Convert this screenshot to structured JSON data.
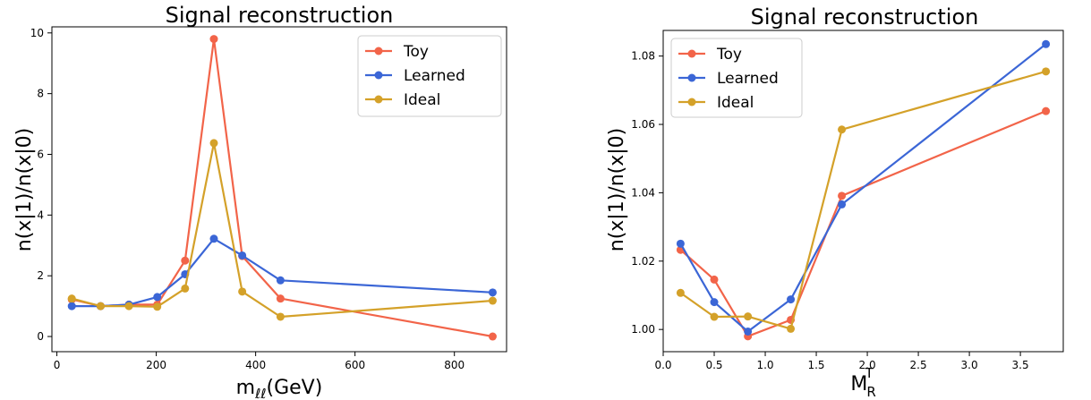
{
  "chart_data": [
    {
      "type": "line",
      "title": "Signal reconstruction",
      "xlabel": "m",
      "xlabel_sub": "ℓℓ",
      "xlabel_suffix": "(GeV)",
      "ylabel": "n(x|1)/n(x|0)",
      "xlim": [
        -10,
        905
      ],
      "ylim": [
        -0.5,
        10.2
      ],
      "xticks": [
        0,
        200,
        400,
        600,
        800
      ],
      "yticks": [
        0,
        2,
        4,
        6,
        8,
        10
      ],
      "legend_position": "top-right",
      "grid": false,
      "series": [
        {
          "name": "Toy",
          "color": "#f26449",
          "x": [
            30,
            88,
            145,
            202,
            258,
            316,
            373,
            450,
            877
          ],
          "y": [
            1.22,
            1.0,
            1.05,
            1.05,
            2.5,
            9.8,
            2.65,
            1.25,
            0.0
          ]
        },
        {
          "name": "Learned",
          "color": "#3b66d6",
          "x": [
            30,
            88,
            145,
            202,
            258,
            316,
            373,
            450,
            877
          ],
          "y": [
            1.0,
            1.0,
            1.05,
            1.3,
            2.05,
            3.22,
            2.67,
            1.85,
            1.45
          ]
        },
        {
          "name": "Ideal",
          "color": "#d4a129",
          "x": [
            30,
            88,
            145,
            202,
            258,
            316,
            373,
            450,
            877
          ],
          "y": [
            1.25,
            1.0,
            1.0,
            0.98,
            1.58,
            6.37,
            1.48,
            0.65,
            1.18
          ]
        }
      ]
    },
    {
      "type": "line",
      "title": "Signal reconstruction",
      "xlabel": "M",
      "xlabel_sub": "R",
      "xlabel_sup": "T",
      "xlabel_suffix": "",
      "ylabel": "n(x|1)/n(x|0)",
      "xlim": [
        0,
        3.92
      ],
      "ylim": [
        0.9935,
        1.0875
      ],
      "xticks": [
        0.0,
        0.5,
        1.0,
        1.5,
        2.0,
        2.5,
        3.0,
        3.5
      ],
      "xtick_labels": [
        "0.0",
        "0.5",
        "1.0",
        "1.5",
        "2.0",
        "2.5",
        "3.0",
        "3.5"
      ],
      "yticks": [
        1.0,
        1.02,
        1.04,
        1.06,
        1.08
      ],
      "ytick_labels": [
        "1.00",
        "1.02",
        "1.04",
        "1.06",
        "1.08"
      ],
      "legend_position": "top-left",
      "grid": false,
      "series": [
        {
          "name": "Toy",
          "color": "#f26449",
          "x": [
            0.17,
            0.5,
            0.83,
            1.25,
            1.75,
            3.75
          ],
          "y": [
            1.0233,
            1.0146,
            0.998,
            1.0028,
            1.0391,
            1.0639
          ]
        },
        {
          "name": "Learned",
          "color": "#3b66d6",
          "x": [
            0.17,
            0.5,
            0.83,
            1.25,
            1.75,
            3.75
          ],
          "y": [
            1.0251,
            1.008,
            0.9994,
            1.0088,
            1.0366,
            1.0835
          ]
        },
        {
          "name": "Ideal",
          "color": "#d4a129",
          "x": [
            0.17,
            0.5,
            0.83,
            1.25,
            1.75,
            3.75
          ],
          "y": [
            1.0107,
            1.0037,
            1.0038,
            1.0002,
            1.0585,
            1.0755
          ]
        }
      ]
    }
  ]
}
